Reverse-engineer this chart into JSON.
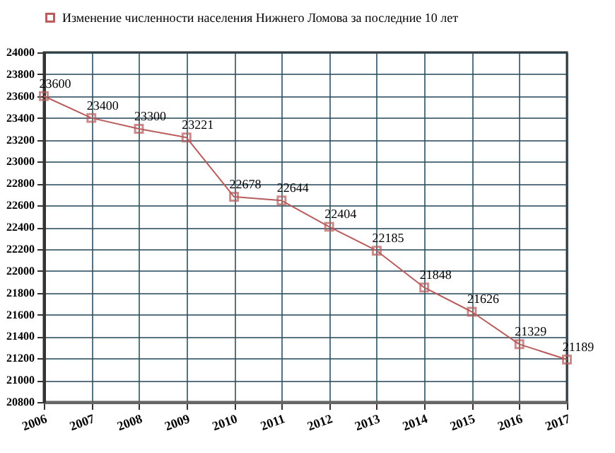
{
  "chart_data": {
    "type": "line",
    "x": [
      2006,
      2007,
      2008,
      2009,
      2010,
      2011,
      2012,
      2013,
      2014,
      2015,
      2016,
      2017
    ],
    "series": [
      {
        "name": "Изменение численности населения Нижнего Ломова за последние 10 лет",
        "color": "#b85c5c",
        "values": [
          23600,
          23400,
          23300,
          23221,
          22678,
          22644,
          22404,
          22185,
          21848,
          21626,
          21329,
          21189
        ]
      }
    ],
    "xlim": [
      2006,
      2017
    ],
    "xticks": [
      2006,
      2007,
      2008,
      2009,
      2010,
      2011,
      2012,
      2013,
      2014,
      2015,
      2016,
      2017
    ],
    "ylim": [
      20800,
      24000
    ],
    "yticks": [
      20800,
      21000,
      21200,
      21400,
      21600,
      21800,
      22000,
      22200,
      22400,
      22600,
      22800,
      23000,
      23200,
      23400,
      23600,
      23800,
      24000
    ],
    "grid": true,
    "legend": "top",
    "marker": "square",
    "line_style": "solid",
    "data_labels": true
  }
}
